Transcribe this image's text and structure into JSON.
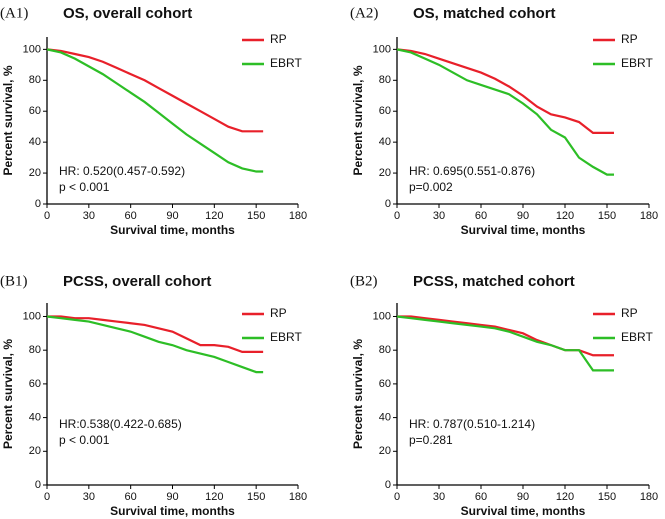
{
  "chart_data": [
    {
      "type": "line",
      "panel": "(A1)",
      "title": "OS, overall cohort",
      "annotations": [
        "HR: 0.520(0.457-0.592)",
        "p < 0.001"
      ],
      "x_label": "Survival time, months",
      "y_label": "Percent survival, %",
      "x": [
        0,
        10,
        20,
        30,
        40,
        50,
        60,
        70,
        80,
        90,
        100,
        110,
        120,
        130,
        140,
        150,
        155
      ],
      "series": [
        {
          "name": "RP",
          "color": "#e8202a",
          "values": [
            100,
            99,
            97,
            95,
            92,
            88,
            84,
            80,
            75,
            70,
            65,
            60,
            55,
            50,
            47,
            47,
            47
          ]
        },
        {
          "name": "EBRT",
          "color": "#2dbe26",
          "values": [
            100,
            98,
            94,
            89,
            84,
            78,
            72,
            66,
            59,
            52,
            45,
            39,
            33,
            27,
            23,
            21,
            21
          ]
        }
      ],
      "xlim": [
        0,
        180
      ],
      "xticks": [
        0,
        30,
        60,
        90,
        120,
        150,
        180
      ],
      "ylim": [
        0,
        108
      ],
      "yticks": [
        0,
        20,
        40,
        60,
        80,
        100
      ]
    },
    {
      "type": "line",
      "panel": "(A2)",
      "title": "OS,  matched cohort",
      "annotations": [
        "HR: 0.695(0.551-0.876)",
        "p=0.002"
      ],
      "x_label": "Survival time, months",
      "y_label": "Percent survival, %",
      "x": [
        0,
        10,
        20,
        30,
        40,
        50,
        60,
        70,
        80,
        90,
        100,
        110,
        120,
        130,
        140,
        150,
        155
      ],
      "series": [
        {
          "name": "RP",
          "color": "#e8202a",
          "values": [
            100,
            99,
            97,
            94,
            91,
            88,
            85,
            81,
            76,
            70,
            63,
            58,
            56,
            53,
            46,
            46,
            46
          ]
        },
        {
          "name": "EBRT",
          "color": "#2dbe26",
          "values": [
            100,
            98,
            94,
            90,
            85,
            80,
            77,
            74,
            71,
            65,
            58,
            48,
            43,
            30,
            24,
            19,
            19
          ]
        }
      ],
      "xlim": [
        0,
        180
      ],
      "xticks": [
        0,
        30,
        60,
        90,
        120,
        150,
        180
      ],
      "ylim": [
        0,
        108
      ],
      "yticks": [
        0,
        20,
        40,
        60,
        80,
        100
      ]
    },
    {
      "type": "line",
      "panel": "(B1)",
      "title": "PCSS, overall cohort",
      "annotations": [
        "HR:0.538(0.422-0.685)",
        "p < 0.001"
      ],
      "x_label": "Survival time, months",
      "y_label": "Percent survival, %",
      "x": [
        0,
        10,
        20,
        30,
        40,
        50,
        60,
        70,
        80,
        90,
        100,
        110,
        120,
        130,
        140,
        150,
        155
      ],
      "series": [
        {
          "name": "RP",
          "color": "#e8202a",
          "values": [
            100,
            100,
            99,
            99,
            98,
            97,
            96,
            95,
            93,
            91,
            87,
            83,
            83,
            82,
            79,
            79,
            79
          ]
        },
        {
          "name": "EBRT",
          "color": "#2dbe26",
          "values": [
            100,
            99,
            98,
            97,
            95,
            93,
            91,
            88,
            85,
            83,
            80,
            78,
            76,
            73,
            70,
            67,
            67
          ]
        }
      ],
      "xlim": [
        0,
        180
      ],
      "xticks": [
        0,
        30,
        60,
        90,
        120,
        150,
        180
      ],
      "ylim": [
        0,
        108
      ],
      "yticks": [
        0,
        20,
        40,
        60,
        80,
        100
      ]
    },
    {
      "type": "line",
      "panel": "(B2)",
      "title": "PCSS, matched cohort",
      "annotations": [
        "HR: 0.787(0.510-1.214)",
        "p=0.281"
      ],
      "x_label": "Survival time, months",
      "y_label": "Percent survival, %",
      "x": [
        0,
        10,
        20,
        30,
        40,
        50,
        60,
        70,
        80,
        90,
        100,
        110,
        120,
        130,
        140,
        150,
        155
      ],
      "series": [
        {
          "name": "RP",
          "color": "#e8202a",
          "values": [
            100,
            100,
            99,
            98,
            97,
            96,
            95,
            94,
            92,
            90,
            86,
            83,
            80,
            80,
            77,
            77,
            77
          ]
        },
        {
          "name": "EBRT",
          "color": "#2dbe26",
          "values": [
            100,
            99,
            98,
            97,
            96,
            95,
            94,
            93,
            91,
            88,
            85,
            83,
            80,
            80,
            68,
            68,
            68
          ]
        }
      ],
      "xlim": [
        0,
        180
      ],
      "xticks": [
        0,
        30,
        60,
        90,
        120,
        150,
        180
      ],
      "ylim": [
        0,
        108
      ],
      "yticks": [
        0,
        20,
        40,
        60,
        80,
        100
      ]
    }
  ]
}
